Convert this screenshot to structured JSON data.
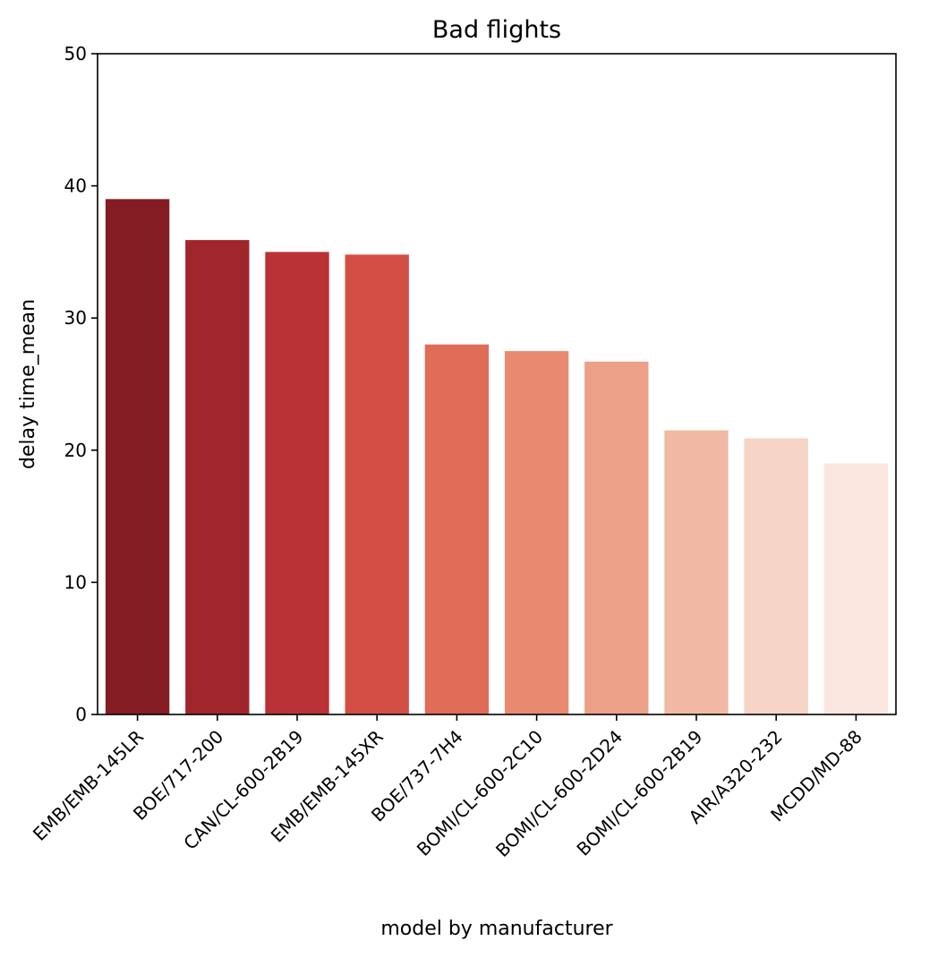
{
  "chart_data": {
    "type": "bar",
    "title": "Bad flights",
    "xlabel": "model by manufacturer",
    "ylabel": "delay time_mean",
    "ylim": [
      0,
      50
    ],
    "yticks": [
      0,
      10,
      20,
      30,
      40,
      50
    ],
    "categories": [
      "EMB/EMB-145LR",
      "BOE/717-200",
      "CAN/CL-600-2B19",
      "EMB/EMB-145XR",
      "BOE/737-7H4",
      "BOMI/CL-600-2C10",
      "BOMI/CL-600-2D24",
      "BOMI/CL-600-2B19",
      "AIR/A320-232",
      "MCDD/MD-88"
    ],
    "values": [
      39.0,
      35.9,
      35.0,
      34.8,
      28.0,
      27.5,
      26.7,
      21.5,
      20.9,
      19.0
    ],
    "colors": [
      "#841c24",
      "#a0262c",
      "#b93236",
      "#d34f45",
      "#e06b57",
      "#e98a70",
      "#eca088",
      "#f1b9a4",
      "#f5d3c5",
      "#fae6de"
    ],
    "grid": false,
    "legend": "none"
  }
}
